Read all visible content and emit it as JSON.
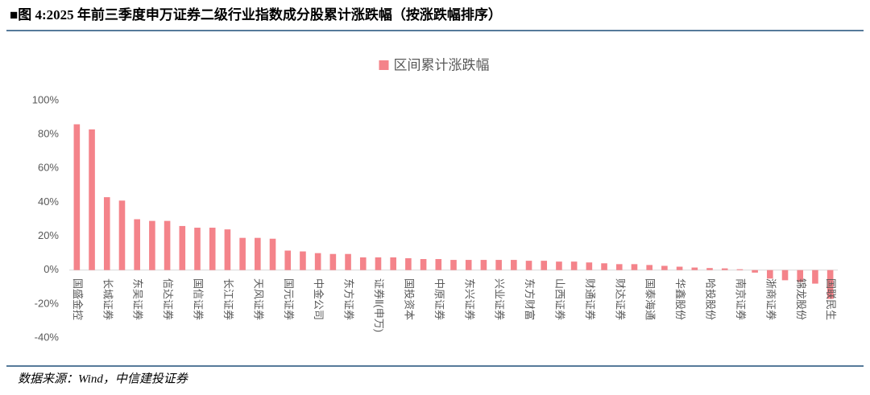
{
  "header": {
    "title": "■图 4:2025 年前三季度申万证券二级行业指数成分股累计涨跌幅（按涨跌幅排序）"
  },
  "chart_data": {
    "type": "bar",
    "categories": [
      "国盛金控",
      null,
      "长城证券",
      null,
      "东吴证券",
      null,
      "信达证券",
      null,
      "国信证券",
      null,
      "长江证券",
      null,
      "天风证券",
      null,
      "国元证券",
      null,
      "中金公司",
      null,
      "东方证券",
      null,
      "证券Ⅱ(申万)",
      null,
      "国投资本",
      null,
      "中原证券",
      null,
      "东兴证券",
      null,
      "兴业证券",
      null,
      "东方财富",
      null,
      "山西证券",
      null,
      "财通证券",
      null,
      "财达证券",
      null,
      "国泰海通",
      null,
      "华鑫股份",
      null,
      "哈投股份",
      null,
      "南京证券",
      null,
      "浙商证券",
      null,
      "锦龙股份",
      null,
      "国联民生"
    ],
    "series": [
      {
        "name": "区间累计涨跌幅",
        "color": "#f4838a",
        "values": [
          86,
          83,
          43,
          41,
          30,
          29,
          29,
          26,
          25,
          25,
          24,
          19,
          19,
          18.5,
          11.5,
          11,
          10,
          9.5,
          9.5,
          7.5,
          7.5,
          7.5,
          7,
          6.5,
          6.5,
          6,
          6,
          6,
          6,
          6,
          5.5,
          5.5,
          5,
          5,
          4.5,
          4,
          3.5,
          3.5,
          3,
          2.5,
          2,
          1.5,
          1.2,
          1,
          0.5,
          -1.5,
          -5,
          -6,
          -7,
          -8,
          -17
        ]
      }
    ],
    "ylim": [
      -40,
      100
    ],
    "yticks": [
      {
        "value": -40,
        "label": "-40%"
      },
      {
        "value": -20,
        "label": "-20%"
      },
      {
        "value": 0,
        "label": "0%"
      },
      {
        "value": 20,
        "label": "20%"
      },
      {
        "value": 40,
        "label": "40%"
      },
      {
        "value": 60,
        "label": "60%"
      },
      {
        "value": 80,
        "label": "80%"
      },
      {
        "value": 100,
        "label": "100%"
      }
    ],
    "legend": "top"
  },
  "footer": {
    "source": "数据来源：Wind，中信建投证券"
  }
}
